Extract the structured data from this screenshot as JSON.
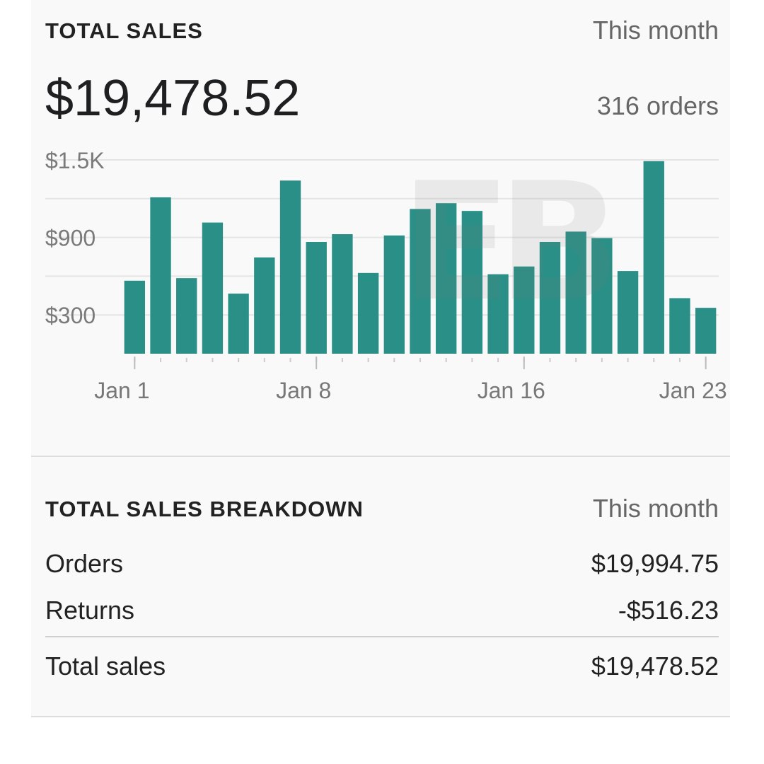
{
  "total_sales": {
    "title": "TOTAL SALES",
    "period": "This month",
    "amount": "$19,478.52",
    "orders": "316 orders"
  },
  "watermark": "EB",
  "chart_data": {
    "type": "bar",
    "title": "",
    "xlabel": "",
    "ylabel": "",
    "ylim": [
      0,
      1500
    ],
    "y_ticks": [
      300,
      900,
      1500
    ],
    "y_tick_labels": [
      "$300",
      "$900",
      "$1.5K"
    ],
    "x_tick_labels": [
      {
        "label": "Jan 1",
        "index": 0
      },
      {
        "label": "Jan 8",
        "index": 7
      },
      {
        "label": "Jan 16",
        "index": 15
      },
      {
        "label": "Jan 23",
        "index": 22
      }
    ],
    "grid": true,
    "color": "#2a9087",
    "categories": [
      "Jan 1",
      "Jan 2",
      "Jan 3",
      "Jan 4",
      "Jan 5",
      "Jan 6",
      "Jan 7",
      "Jan 8",
      "Jan 9",
      "Jan 10",
      "Jan 11",
      "Jan 12",
      "Jan 13",
      "Jan 14",
      "Jan 15",
      "Jan 16",
      "Jan 17",
      "Jan 18",
      "Jan 19",
      "Jan 20",
      "Jan 21",
      "Jan 22",
      "Jan 23"
    ],
    "values": [
      565,
      1210,
      585,
      1015,
      465,
      745,
      1340,
      865,
      925,
      625,
      915,
      1120,
      1165,
      1105,
      615,
      675,
      865,
      945,
      895,
      640,
      1490,
      430,
      355
    ]
  },
  "breakdown": {
    "title": "TOTAL SALES BREAKDOWN",
    "period": "This month",
    "rows": [
      {
        "label": "Orders",
        "value": "$19,994.75"
      },
      {
        "label": "Returns",
        "value": "-$516.23"
      }
    ],
    "total": {
      "label": "Total sales",
      "value": "$19,478.52"
    }
  }
}
